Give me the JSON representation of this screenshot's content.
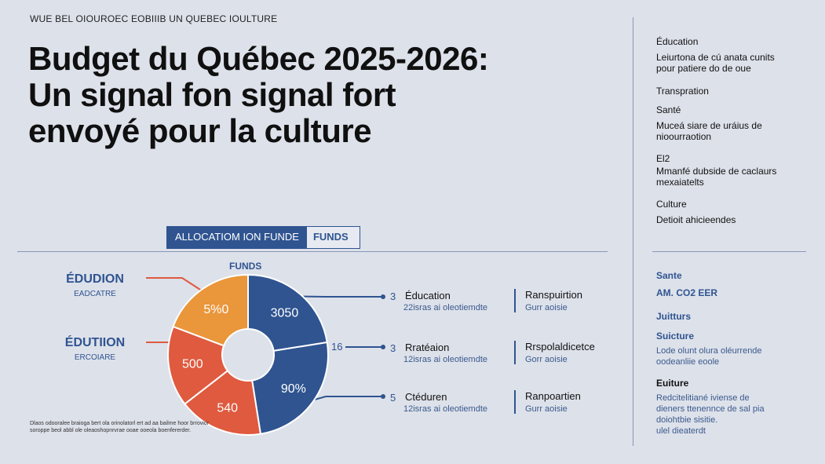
{
  "kicker": "WUE BEL OIOUROEC EOBIIIB UN QUEBEC IOULTURE",
  "title_lines": [
    "Budget du Québec 2025-2026:",
    "Un signal fon signal fort",
    "envoyé pour la culture"
  ],
  "tabs": {
    "active": "ALLOCATIOM ION FUNDE",
    "other": "FUNDS"
  },
  "pie_caption": "FUNDS",
  "left_labels": [
    {
      "big": "ÉDUDION",
      "small": "EADCATRE"
    },
    {
      "big": "ÉDUTIION",
      "small": "ERCOIARE"
    }
  ],
  "footnote": "Dlaos odooralee braioga bert ola orinolatorl ert ad aa bailme hoor brrovior soroppe beol abbl ole oleaoshopnrvrae ooae ooeola boenfererder.",
  "colors": {
    "blue": "#2f5490",
    "orange": "#ea963a",
    "red": "#df5a3f",
    "bg": "#dde1ea"
  },
  "chart_data": {
    "type": "pie",
    "slice_labels": [
      "3050",
      "90%",
      "540",
      "500",
      "5%0"
    ],
    "slices": [
      {
        "value": 90,
        "color": "#2f5490"
      },
      {
        "value": 100,
        "color": "#2f5490"
      },
      {
        "value": 68,
        "color": "#df5a3f"
      },
      {
        "value": 65,
        "color": "#df5a3f"
      },
      {
        "value": 77,
        "color": "#ea963a"
      }
    ],
    "leader_label": "16",
    "rows": [
      {
        "num": "3",
        "name": "Éducation",
        "sub": "22isras ai oleotiemdte",
        "pair_name": "Ranspuirtion",
        "pair_sub": "Gurr aoisie"
      },
      {
        "num": "3",
        "name": "Rratéaion",
        "sub": "12isras ai oleotiemdte",
        "pair_name": "Rrspolaldicetce",
        "pair_sub": "Gorr aoisie"
      },
      {
        "num": "5",
        "name": "Ctéduren",
        "sub": "12isras ai oleotiemdte",
        "pair_name": "Ranpoartien",
        "pair_sub": "Gurr aoisie"
      }
    ]
  },
  "sidebar_top": [
    {
      "head": "Éducation",
      "body": [
        "Leiurtona de cú anata cunits",
        "pour patiere do de oue"
      ]
    },
    {
      "head": "Transpration",
      "body": []
    },
    {
      "head": "Santé",
      "body": [
        "Muceá siare de uráius de",
        "nioourraotion"
      ]
    },
    {
      "head": "El2",
      "body": [
        "Mmanfé dubside de caclaurs",
        "mexaiatelts"
      ]
    },
    {
      "head": "Culture",
      "body": [
        "Detioit ahicieendes"
      ]
    }
  ],
  "sidebar_bottom": {
    "sante": "Sante",
    "am": "AM. CO2 EER",
    "juitturs": "Juitturs",
    "suicture": "Suicture",
    "suicture_body": [
      "Lode olunt olura oléurrende",
      "oodeanliie eoole"
    ],
    "euiture": "Euiture",
    "euiture_body": [
      "Redcitelitiané iviense de",
      "dieners ttenennce de sal pia",
      "doiohtbie sisitie.",
      "ulel dieaterdt"
    ]
  }
}
